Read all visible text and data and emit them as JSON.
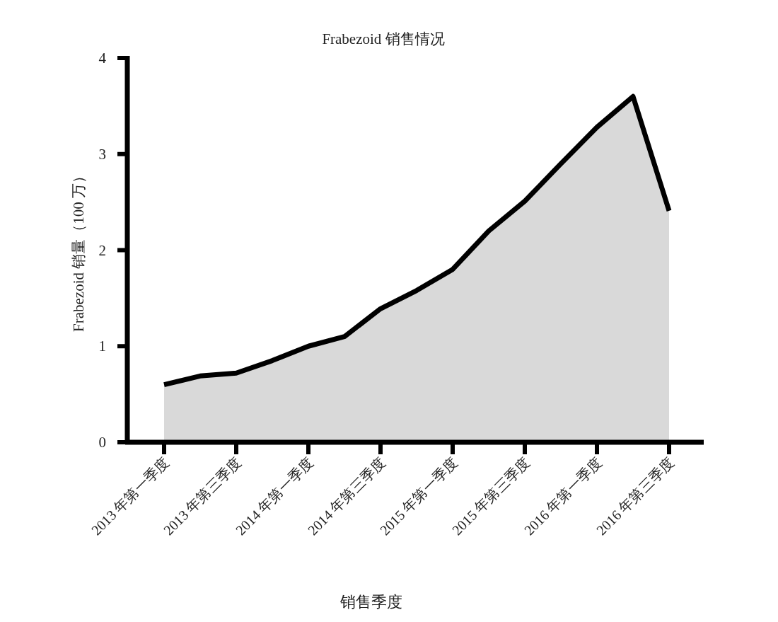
{
  "chart_data": {
    "type": "area",
    "title": "Frabezoid 销售情况",
    "xlabel": "销售季度",
    "ylabel": "Frabezoid 销量（100 万）",
    "categories": [
      "2013 年第一季度",
      null,
      "2013 年第三季度",
      null,
      "2014 年第一季度",
      null,
      "2014 年第三季度",
      null,
      "2015 年第一季度",
      null,
      "2015 年第三季度",
      null,
      "2016 年第一季度",
      null,
      "2016 年第三季度"
    ],
    "series": [
      {
        "color": "#d9d9d9",
        "values": [
          0.6,
          0.69,
          0.72,
          0.85,
          1.0,
          1.1,
          1.39,
          1.58,
          1.8,
          2.2,
          2.51,
          2.9,
          3.28,
          3.6,
          2.41
        ]
      }
    ],
    "ylim": [
      0,
      4
    ],
    "yticks": [
      0,
      1,
      2,
      3,
      4
    ],
    "grid": false
  }
}
